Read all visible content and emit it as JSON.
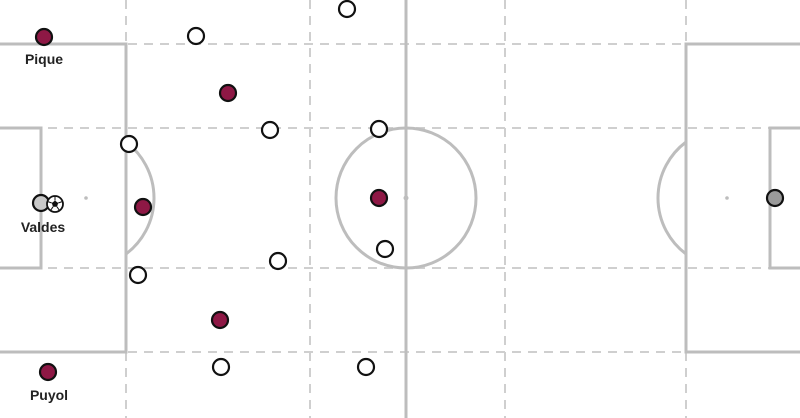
{
  "pitch": {
    "line_color": "#bdbdbd",
    "background": "#ffffff"
  },
  "team_home": {
    "color": "#8e1845",
    "goalkeeper_color": "#c8c8c8",
    "labels": {
      "pique": "Pique",
      "valdes": "Valdes",
      "puyol": "Puyol"
    }
  },
  "team_away": {
    "color": "#ffffff",
    "goalkeeper_color": "#9a9a9a"
  },
  "ball": {
    "icon": "soccer-ball-icon"
  }
}
